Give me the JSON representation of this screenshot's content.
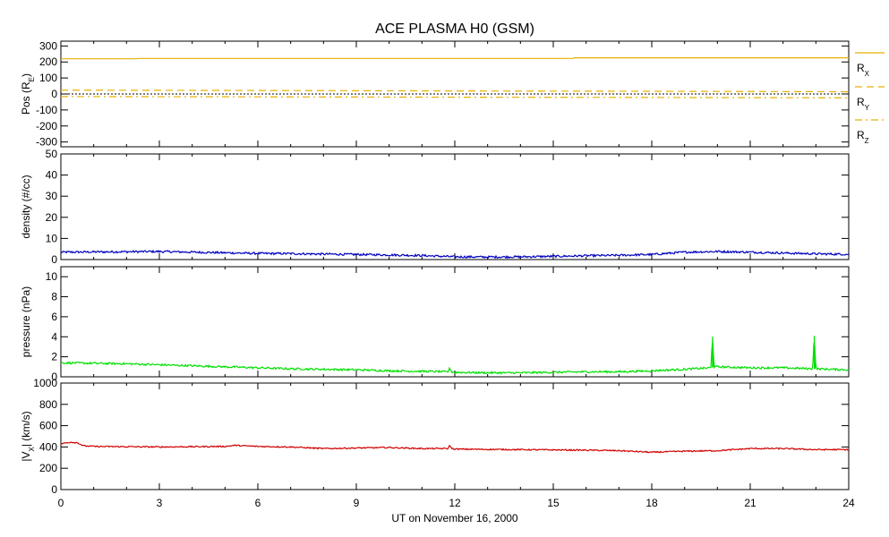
{
  "chart_data": {
    "type": "line",
    "title": "ACE PLASMA H0 (GSM)",
    "xlabel": "UT on November 16, 2000",
    "xlim": [
      0,
      24
    ],
    "xticks": [
      0,
      3,
      6,
      9,
      12,
      15,
      18,
      21,
      24
    ],
    "xtick_labels": [
      "0",
      "3",
      "6",
      "9",
      "12",
      "15",
      "18",
      "21",
      "24"
    ],
    "grid": false,
    "panels": [
      {
        "id": "pos",
        "ylabel_text": "Pos (R",
        "ylabel_sub": "E",
        "ylabel_tail": ")",
        "ylim": [
          -330,
          330
        ],
        "yticks": [
          -300,
          -200,
          -100,
          0,
          100,
          200,
          300
        ],
        "ytick_labels": [
          "-300",
          "-200",
          "-100",
          "0",
          "100",
          "200",
          "300"
        ],
        "zero_line": true,
        "series": [
          {
            "name": "R",
            "sub": "X",
            "color": "#e8b000",
            "dash": "solid",
            "x": [
              0,
              2.3,
              2.35,
              15.6,
              15.65,
              24
            ],
            "y": [
              220,
              220,
              222,
              222,
              226,
              226
            ]
          },
          {
            "name": "R",
            "sub": "Y",
            "color": "#e8b000",
            "dash": "dash",
            "x": [
              0,
              6,
              12,
              18,
              24
            ],
            "y": [
              24,
              22,
              19,
              17,
              14
            ]
          },
          {
            "name": "R",
            "sub": "Z",
            "color": "#e8b000",
            "dash": "dashdot",
            "x": [
              0,
              6,
              12,
              18,
              24
            ],
            "y": [
              -16,
              -18,
              -20,
              -22,
              -24
            ]
          }
        ]
      },
      {
        "id": "density",
        "ylabel_text": "density (#/cc)",
        "ylim": [
          0,
          50
        ],
        "yticks": [
          0,
          10,
          20,
          30,
          40,
          50
        ],
        "ytick_labels": [
          "0",
          "10",
          "20",
          "30",
          "40",
          "50"
        ],
        "series": [
          {
            "color": "#0000c0",
            "x": [
              0,
              1,
              2,
              3,
              4,
              5,
              6,
              7,
              8,
              9,
              10,
              11,
              12,
              13,
              14,
              15,
              16,
              17,
              18,
              19,
              20,
              21,
              22,
              23,
              24
            ],
            "y": [
              3.5,
              3.6,
              3.7,
              3.8,
              3.5,
              3.2,
              2.9,
              2.8,
              2.6,
              2.4,
              2.2,
              1.9,
              1.3,
              1.2,
              1.3,
              1.5,
              1.8,
              2.0,
              2.4,
              3.5,
              3.8,
              3.5,
              3.1,
              2.7,
              2.5
            ],
            "noise": 0.5
          }
        ]
      },
      {
        "id": "pressure",
        "ylabel_text": "pressure (nPa)",
        "ylim": [
          0,
          11
        ],
        "yticks": [
          0,
          2,
          4,
          6,
          8,
          10
        ],
        "ytick_labels": [
          "0",
          "2",
          "4",
          "6",
          "8",
          "10"
        ],
        "series": [
          {
            "color": "#00e000",
            "x": [
              0,
              1,
              2,
              3,
              4,
              5,
              6,
              7,
              8,
              9,
              10,
              11,
              11.8,
              11.85,
              11.9,
              12,
              13,
              14,
              15,
              16,
              17,
              18,
              19,
              19.8,
              19.85,
              19.9,
              20,
              21,
              22,
              22.9,
              22.95,
              23,
              24
            ],
            "y": [
              1.4,
              1.35,
              1.3,
              1.2,
              1.1,
              1.0,
              0.9,
              0.8,
              0.75,
              0.7,
              0.6,
              0.55,
              0.5,
              0.9,
              0.5,
              0.45,
              0.4,
              0.4,
              0.45,
              0.5,
              0.5,
              0.6,
              0.75,
              0.9,
              4.0,
              1.0,
              1.0,
              0.9,
              0.9,
              0.8,
              4.1,
              0.8,
              0.7
            ],
            "noise": 0.1
          }
        ]
      },
      {
        "id": "vx",
        "ylabel_text": "|V",
        "ylabel_sub": "X",
        "ylabel_tail": "| (km/s)",
        "ylim": [
          0,
          1000
        ],
        "yticks": [
          0,
          200,
          400,
          600,
          800,
          1000
        ],
        "ytick_labels": [
          "0",
          "200",
          "400",
          "600",
          "800",
          "1000"
        ],
        "series": [
          {
            "color": "#d00000",
            "x": [
              0,
              0.3,
              0.5,
              0.7,
              1,
              3,
              5,
              5.3,
              6,
              7,
              8,
              9,
              10,
              11,
              11.8,
              11.85,
              11.9,
              12,
              14,
              16,
              17,
              18,
              19,
              20,
              21,
              22,
              23,
              24
            ],
            "y": [
              430,
              445,
              440,
              410,
              405,
              400,
              405,
              415,
              405,
              400,
              385,
              390,
              395,
              385,
              385,
              420,
              385,
              380,
              375,
              370,
              365,
              350,
              360,
              365,
              385,
              385,
              375,
              375
            ],
            "noise": 6
          }
        ]
      }
    ]
  }
}
